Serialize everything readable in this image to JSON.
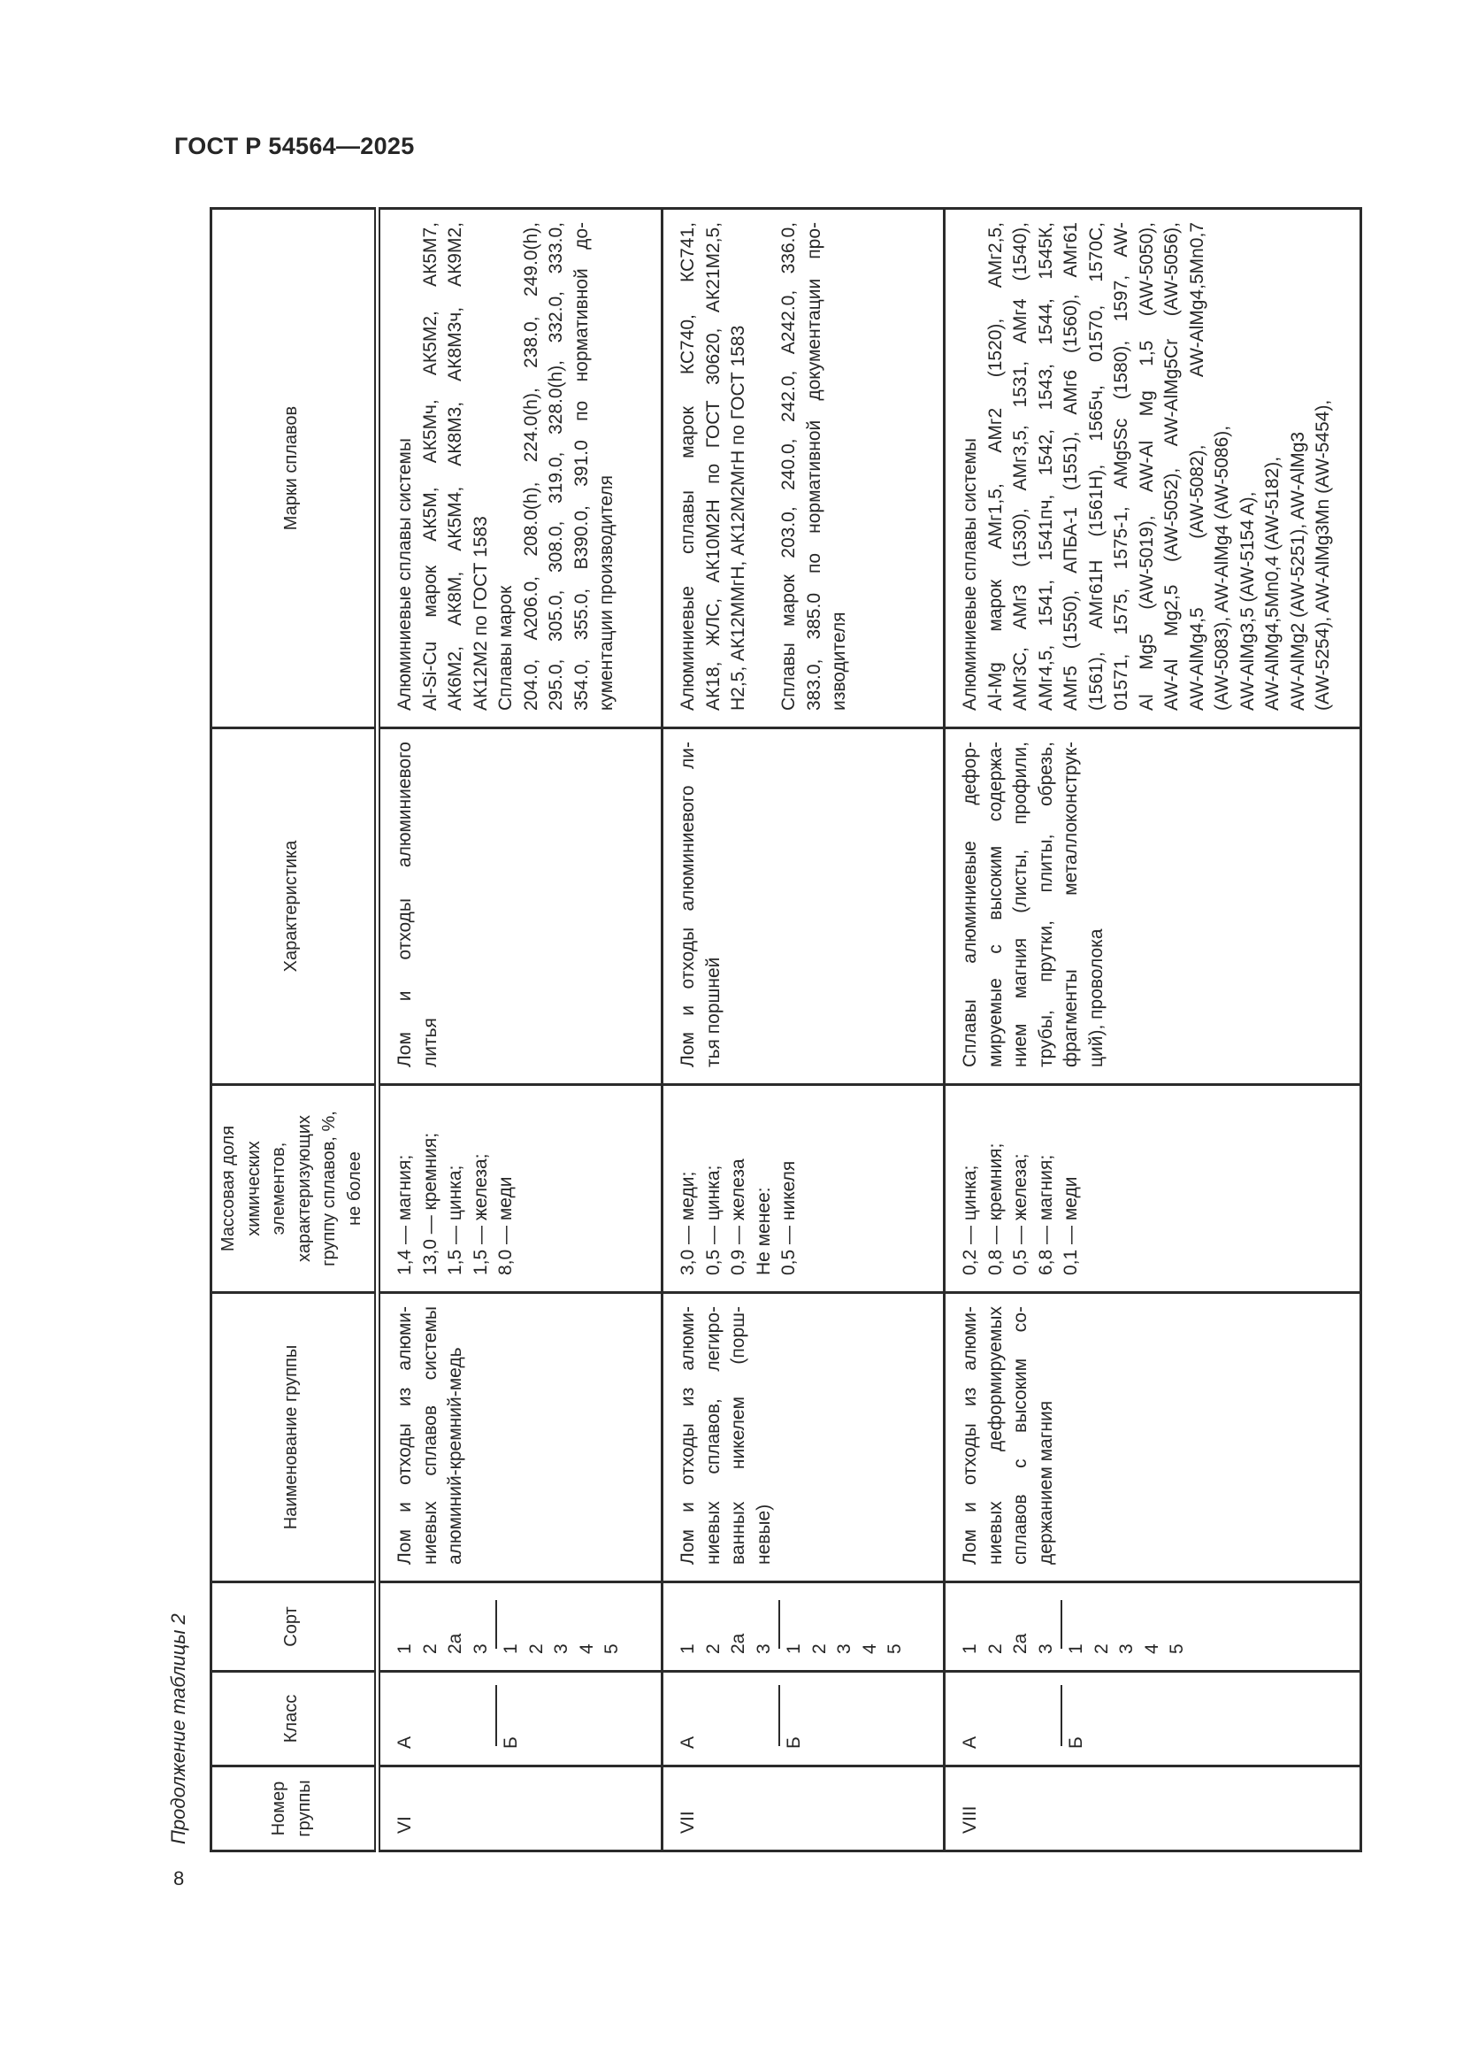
{
  "document": {
    "code": "ГОСТ Р 54564—2025",
    "caption": "Продолжение таблицы 2",
    "page_number": "8"
  },
  "table": {
    "headers": {
      "group_number": [
        "Номер",
        "группы"
      ],
      "class": [
        "Класс"
      ],
      "sort": [
        "Сорт"
      ],
      "group_name": [
        "Наименование группы"
      ],
      "mass_fraction": [
        "Массовая доля",
        "химических",
        "элементов,",
        "характеризующих",
        "группу сплавов, %,",
        "не более"
      ],
      "characteristic": [
        "Характеристика"
      ],
      "alloy_grades": [
        "Марки сплавов"
      ]
    },
    "rows": [
      {
        "group_number": "VI",
        "class_a": "А",
        "class_b": "Б",
        "sort_a": [
          "1",
          "2",
          "2а",
          "3"
        ],
        "sort_b": [
          "1",
          "2",
          "3",
          "4",
          "5"
        ],
        "group_name": [
          [
            "Лом и отходы из алюми-",
            "ниевых сплавов системы",
            "алюминий-кремний-медь"
          ]
        ],
        "mass_fraction": [
          [
            "1,4 — магния;"
          ],
          [
            "13,0 — кремния;"
          ],
          [
            "1,5 — цинка;"
          ],
          [
            "1,5 — железа;"
          ],
          [
            "8,0 — меди"
          ]
        ],
        "characteristic": [
          [
            "Лом и отходы алюминиевого",
            "литья"
          ]
        ],
        "alloy_grades": [
          [
            "Алюминиевые сплавы системы"
          ],
          [
            "Al-Si-Cu марок АК5М, АК5Мч, АК5М2, АК5М7,",
            "АК6М2, АК8М, АК5М4, АК8М3, АК8М3ч, АК9М2,",
            "АК12М2 по ГОСТ 1583"
          ],
          [
            "Сплавы марок"
          ],
          [
            "204.0, A206.0, 208.0(h), 224.0(h), 238.0, 249.0(h),",
            "295.0, 305.0, 308.0, 319.0, 328.0(h), 332.0, 333.0,",
            "354.0, 355.0, B390.0, 391.0 по нормативной до-",
            "кументации производителя"
          ]
        ]
      },
      {
        "group_number": "VII",
        "class_a": "А",
        "class_b": "Б",
        "sort_a": [
          "1",
          "2",
          "2а",
          "3"
        ],
        "sort_b": [
          "1",
          "2",
          "3",
          "4",
          "5"
        ],
        "group_name": [
          [
            "Лом и отходы из алюми-",
            "ниевых сплавов, легиро-",
            "ванных никелем (порш-",
            "невые)"
          ]
        ],
        "mass_fraction": [
          [
            "3,0 — меди;"
          ],
          [
            "0,5 — цинка;"
          ],
          [
            "0,9 — железа"
          ],
          [
            "Не менее:"
          ],
          [
            "0,5 — никеля"
          ]
        ],
        "characteristic": [
          [
            "Лом и отходы алюминиевого ли-",
            "тья поршней"
          ]
        ],
        "alloy_grades": [
          [
            "Алюминиевые сплавы марок КС740, КС741,",
            "АК18, ЖЛС, АК10М2Н по ГОСТ 30620, АК21М2,5,",
            "Н2,5, АК12ММгН, АК12М2МгН по ГОСТ 1583"
          ],
          [
            ""
          ],
          [
            "Сплавы марок 203.0, 240.0, 242.0, A242.0, 336.0,",
            "383.0, 385.0 по нормативной документации про-",
            "изводителя"
          ]
        ]
      },
      {
        "group_number": "VIII",
        "class_a": "А",
        "class_b": "Б",
        "sort_a": [
          "1",
          "2",
          "2а",
          "3"
        ],
        "sort_b": [
          "1",
          "2",
          "3",
          "4",
          "5"
        ],
        "group_name": [
          [
            "Лом и отходы из алюми-",
            "ниевых деформируемых",
            "сплавов с высоким со-",
            "держанием магния"
          ]
        ],
        "mass_fraction": [
          [
            "0,2 — цинка;"
          ],
          [
            "0,8 — кремния;"
          ],
          [
            "0,5 — железа;"
          ],
          [
            "6,8 — магния;"
          ],
          [
            "0,1 — меди"
          ]
        ],
        "characteristic": [
          [
            "Сплавы алюминиевые дефор-",
            "мируемые с высоким содержа-",
            "нием магния (листы, профили,",
            "трубы, прутки, плиты, обрезь,",
            "фрагменты металлоконструк-",
            "ций), проволока"
          ]
        ],
        "alloy_grades": [
          [
            "Алюминиевые сплавы системы"
          ],
          [
            "Al-Mg марок АМг1,5, АМг2 (1520), АМг2,5,",
            "АМг3С, АМг3 (1530), АМг3,5, 1531, АМг4 (1540),",
            "АМг4,5, 1541, 1541пч, 1542, 1543, 1544, 1545К,",
            "АМг5 (1550), АПБА-1 (1551), АМг6 (1560), АМг61",
            "(1561), АМг61Н (1561Н), 1565ч, 01570, 1570С,",
            "01571, 1575, 1575-1, AMg5Sc (1580), 1597, AW-",
            "Al Mg5 (AW-5019), AW-Al Mg 1,5 (AW-5050),",
            "AW-Al Mg2,5 (AW-5052), AW-AlMg5Cr (AW-5056),",
            "AW-AlMg4,5 (AW-5082), AW-AlMg4,5Mn0,7",
            "(AW-5083), AW-AlMg4 (AW-5086),"
          ],
          [
            "AW-AlMg3,5 (AW-5154 A),"
          ],
          [
            "AW-AlMg4,5Mn0,4 (AW-5182),"
          ],
          [
            "AW-AlMg2 (AW-5251), AW-AlMg3"
          ],
          [
            "(AW-5254), AW-AlMg3Mn (AW-5454),"
          ]
        ]
      }
    ]
  }
}
